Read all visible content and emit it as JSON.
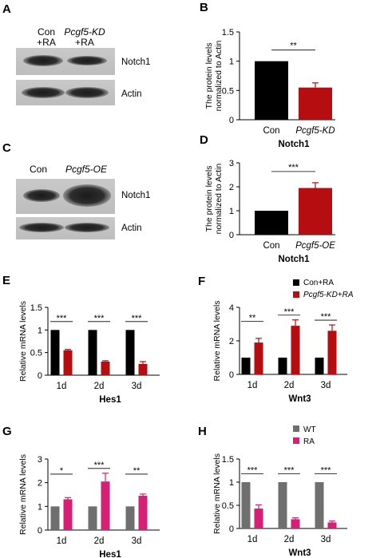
{
  "panels": {
    "A": {
      "label": "A",
      "lanes": [
        [
          "Con",
          "+RA"
        ],
        [
          "Pcgf5-KD",
          "+RA"
        ]
      ],
      "bands": [
        "Notch1",
        "Actin"
      ]
    },
    "C": {
      "label": "C",
      "lanes": [
        [
          "Con"
        ],
        [
          "Pcgf5-OE"
        ]
      ],
      "bands": [
        "Notch1",
        "Actin"
      ]
    },
    "E_legend": [
      "Con+RA",
      "Pcgf5-KD+RA"
    ],
    "G_legend": [
      "WT",
      "RA"
    ]
  },
  "colors": {
    "black": "#000000",
    "red": "#b50d10",
    "gray": "#6f6f6f",
    "pink": "#d61f75"
  },
  "chart_data": [
    {
      "id": "B",
      "label": "B",
      "type": "bar",
      "categories": [
        "Con",
        "Pcgf5-KD"
      ],
      "values": [
        1.0,
        0.55
      ],
      "errors": [
        0,
        0.08
      ],
      "bar_colors": [
        "#000000",
        "#b50d10"
      ],
      "ylabel": [
        "The protein levels",
        "normalized to Actin"
      ],
      "xlabel": "Notch1",
      "ylim": [
        0,
        1.5
      ],
      "yticks": [
        "0",
        "0.5",
        "1",
        "1.5"
      ],
      "significance": [
        "**"
      ]
    },
    {
      "id": "D",
      "label": "D",
      "type": "bar",
      "categories": [
        "Con",
        "Pcgf5-OE"
      ],
      "values": [
        1.0,
        1.95
      ],
      "errors": [
        0,
        0.22
      ],
      "bar_colors": [
        "#000000",
        "#b50d10"
      ],
      "ylabel": [
        "The protein levels",
        "normalized to Actin"
      ],
      "xlabel": "Notch1",
      "ylim": [
        0,
        3
      ],
      "yticks": [
        "0",
        "1",
        "2",
        "3"
      ],
      "significance": [
        "***"
      ]
    },
    {
      "id": "E",
      "label": "E",
      "type": "bar",
      "categories": [
        "1d",
        "2d",
        "3d"
      ],
      "series": [
        {
          "name": "Con+RA",
          "values": [
            1.0,
            1.0,
            1.0
          ],
          "errors": [
            0,
            0,
            0
          ],
          "color": "#000000"
        },
        {
          "name": "Pcgf5-KD+RA",
          "values": [
            0.55,
            0.3,
            0.25
          ],
          "errors": [
            0.02,
            0.02,
            0.05
          ],
          "color": "#b50d10"
        }
      ],
      "ylabel": [
        "Relative mRNA levels"
      ],
      "xlabel": "Hes1",
      "ylim": [
        0,
        1.5
      ],
      "yticks": [
        "0",
        "0.5",
        "1",
        "1.5"
      ],
      "significance": [
        "***",
        "***",
        "***"
      ]
    },
    {
      "id": "F",
      "label": "F",
      "type": "bar",
      "categories": [
        "1d",
        "2d",
        "3d"
      ],
      "series": [
        {
          "name": "Con+RA",
          "values": [
            1.0,
            1.0,
            1.0
          ],
          "errors": [
            0,
            0,
            0
          ],
          "color": "#000000"
        },
        {
          "name": "Pcgf5-KD+RA",
          "values": [
            1.9,
            2.9,
            2.6
          ],
          "errors": [
            0.25,
            0.35,
            0.35
          ],
          "color": "#b50d10"
        }
      ],
      "ylabel": [
        "Relative mRNA levels"
      ],
      "xlabel": "Wnt3",
      "ylim": [
        0,
        4
      ],
      "yticks": [
        "0",
        "2",
        "4"
      ],
      "significance": [
        "**",
        "***",
        "***"
      ]
    },
    {
      "id": "G",
      "label": "G",
      "type": "bar",
      "categories": [
        "1d",
        "2d",
        "3d"
      ],
      "series": [
        {
          "name": "WT",
          "values": [
            1.0,
            1.0,
            1.0
          ],
          "errors": [
            0,
            0,
            0
          ],
          "color": "#6f6f6f"
        },
        {
          "name": "RA",
          "values": [
            1.3,
            2.05,
            1.45
          ],
          "errors": [
            0.07,
            0.35,
            0.07
          ],
          "color": "#d61f75"
        }
      ],
      "ylabel": [
        "Relative mRNA levels"
      ],
      "xlabel": "Hes1",
      "ylim": [
        0,
        3
      ],
      "yticks": [
        "0",
        "1",
        "2",
        "3"
      ],
      "significance": [
        "*",
        "***",
        "**"
      ]
    },
    {
      "id": "H",
      "label": "H",
      "type": "bar",
      "categories": [
        "1d",
        "2d",
        "3d"
      ],
      "series": [
        {
          "name": "WT",
          "values": [
            1.0,
            1.0,
            1.0
          ],
          "errors": [
            0,
            0,
            0
          ],
          "color": "#6f6f6f"
        },
        {
          "name": "RA",
          "values": [
            0.43,
            0.2,
            0.13
          ],
          "errors": [
            0.08,
            0.03,
            0.03
          ],
          "color": "#d61f75"
        }
      ],
      "ylabel": [
        "Relative mRNA levels"
      ],
      "xlabel": "Wnt3",
      "ylim": [
        0,
        1.5
      ],
      "yticks": [
        "0",
        "0.5",
        "1",
        "1.5"
      ],
      "significance": [
        "***",
        "***",
        "***"
      ]
    }
  ]
}
